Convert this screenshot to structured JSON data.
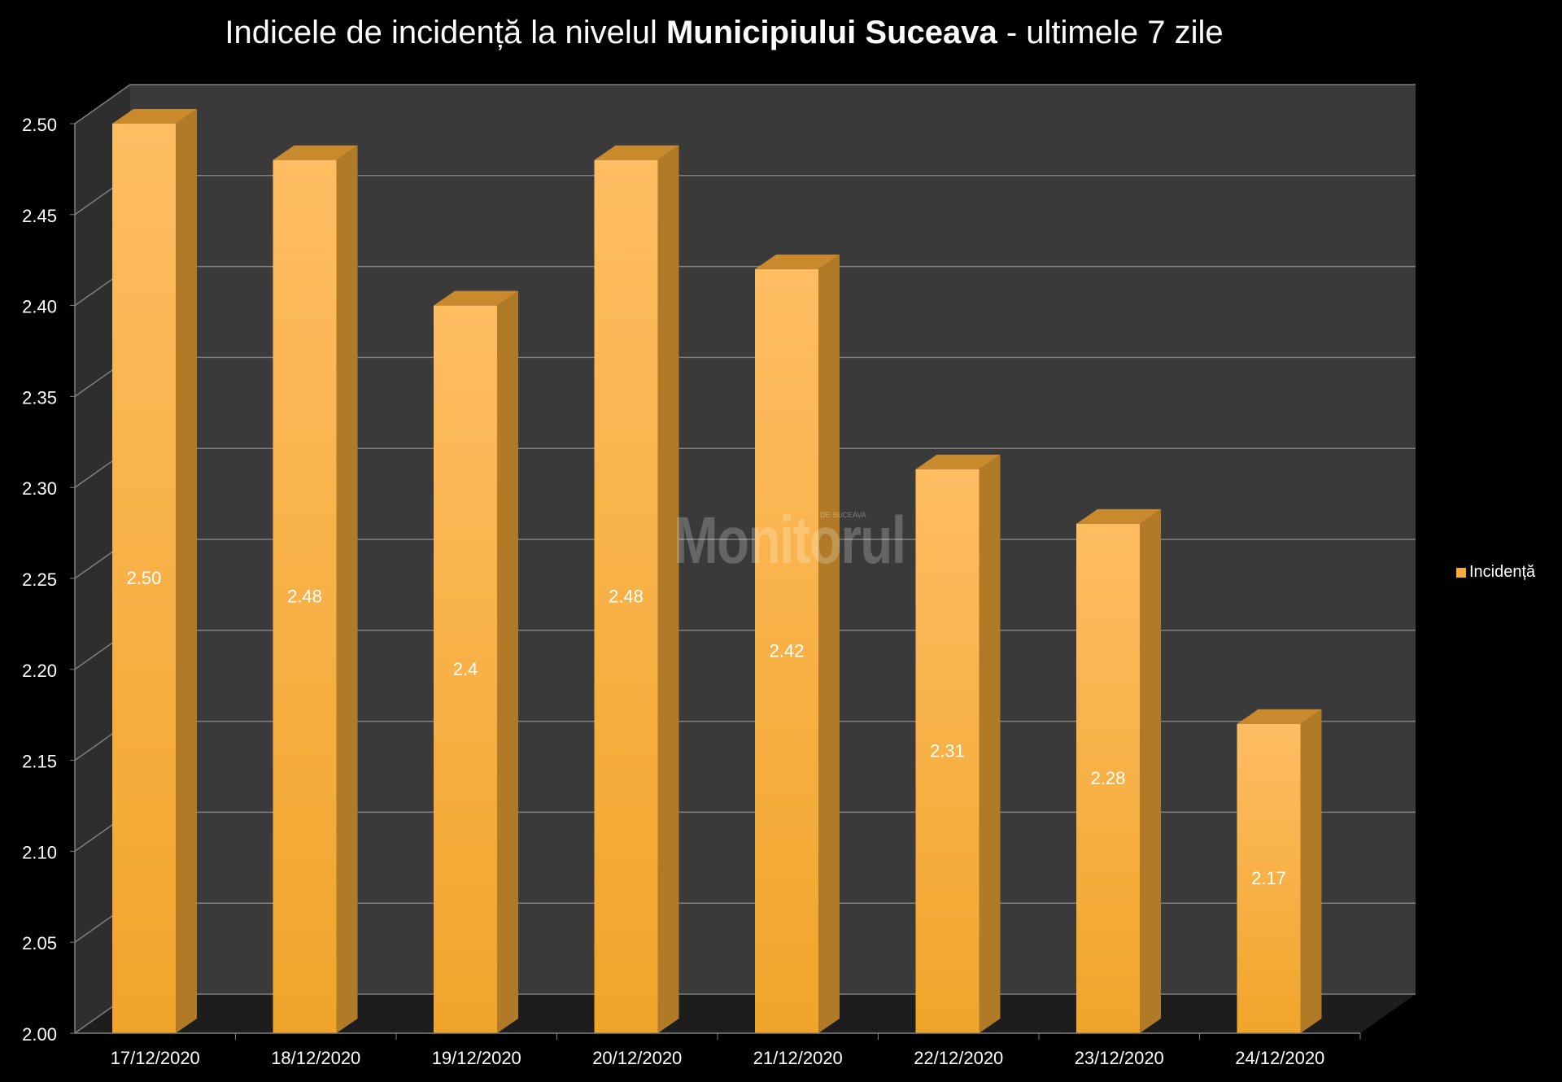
{
  "title": {
    "prefix": "Indicele de incidență la nivelul ",
    "bold": "Municipiului Suceava",
    "suffix": " - ultimele 7 zile"
  },
  "watermark": {
    "text": "Monitorul",
    "small": "DE SUCEAVA"
  },
  "legend": {
    "label": "Incidență",
    "color": "#f7a93a"
  },
  "colors": {
    "bar_front_light": "#ffbd63",
    "bar_front_dark": "#f0a52a",
    "bar_side": "#b07a27",
    "bar_top": "#c98a2e",
    "wall": "#3a3a3a",
    "floor": "#1d1d1d",
    "grid": "#808080",
    "text": "#ffffff"
  },
  "chart_data": {
    "type": "bar",
    "title": "Indicele de incidență la nivelul Municipiului Suceava - ultimele 7 zile",
    "categories": [
      "17/12/2020",
      "18/12/2020",
      "19/12/2020",
      "20/12/2020",
      "21/12/2020",
      "22/12/2020",
      "23/12/2020",
      "24/12/2020"
    ],
    "series": [
      {
        "name": "Incidență",
        "values": [
          2.5,
          2.48,
          2.4,
          2.48,
          2.42,
          2.31,
          2.28,
          2.17
        ],
        "labels": [
          "2.50",
          "2.48",
          "2.4",
          "2.48",
          "2.42",
          "2.31",
          "2.28",
          "2.17"
        ]
      }
    ],
    "ylim": [
      2.0,
      2.5
    ],
    "yticks": [
      "2.00",
      "2.05",
      "2.10",
      "2.15",
      "2.20",
      "2.25",
      "2.30",
      "2.35",
      "2.40",
      "2.45",
      "2.50"
    ],
    "grid": true,
    "legend_position": "right",
    "style": "3d-bar"
  }
}
